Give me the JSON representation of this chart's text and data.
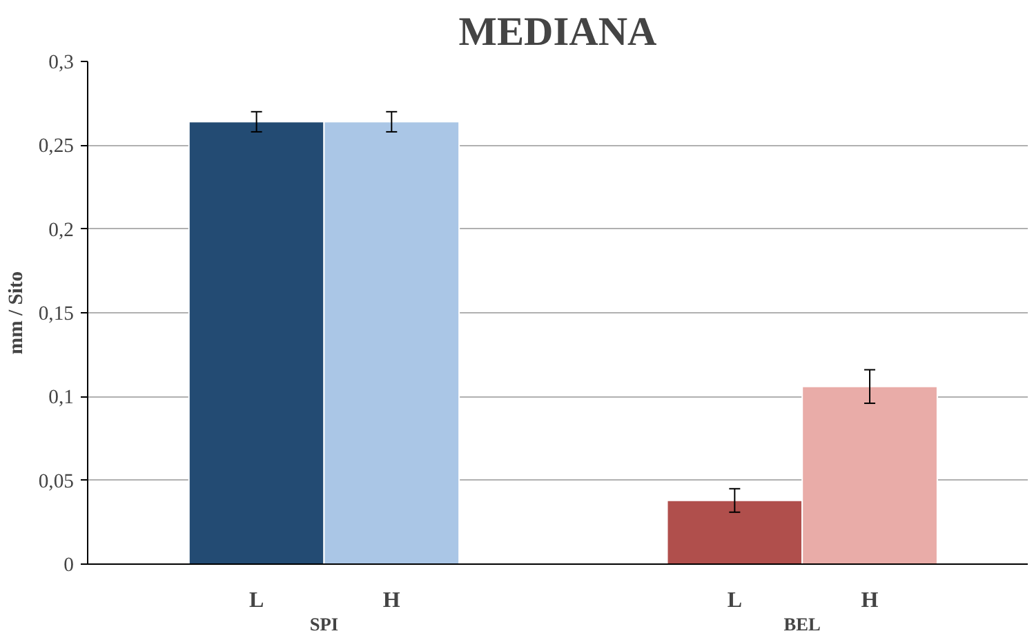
{
  "chart_data": {
    "type": "bar",
    "title": "MEDIANA",
    "ylabel": "mm / Sito",
    "categories": [
      "L",
      "H",
      "L",
      "H"
    ],
    "values": [
      0.264,
      0.264,
      0.038,
      0.106
    ],
    "colors": [
      "#234b73",
      "#aac6e6",
      "#b04f4c",
      "#e9aca8"
    ],
    "errors": [
      0.006,
      0.006,
      0.007,
      0.01
    ],
    "annotations": [
      "SPI",
      "BEL"
    ],
    "ylim": [
      0,
      0.3
    ],
    "yticks": [
      {
        "value": 0,
        "label": "0"
      },
      {
        "value": 0.05,
        "label": "0,05"
      },
      {
        "value": 0.1,
        "label": "0,1"
      },
      {
        "value": 0.15,
        "label": "0,15"
      },
      {
        "value": 0.2,
        "label": "0,2"
      },
      {
        "value": 0.25,
        "label": "0,25"
      },
      {
        "value": 0.3,
        "label": "0,3"
      }
    ],
    "grid": "y"
  }
}
